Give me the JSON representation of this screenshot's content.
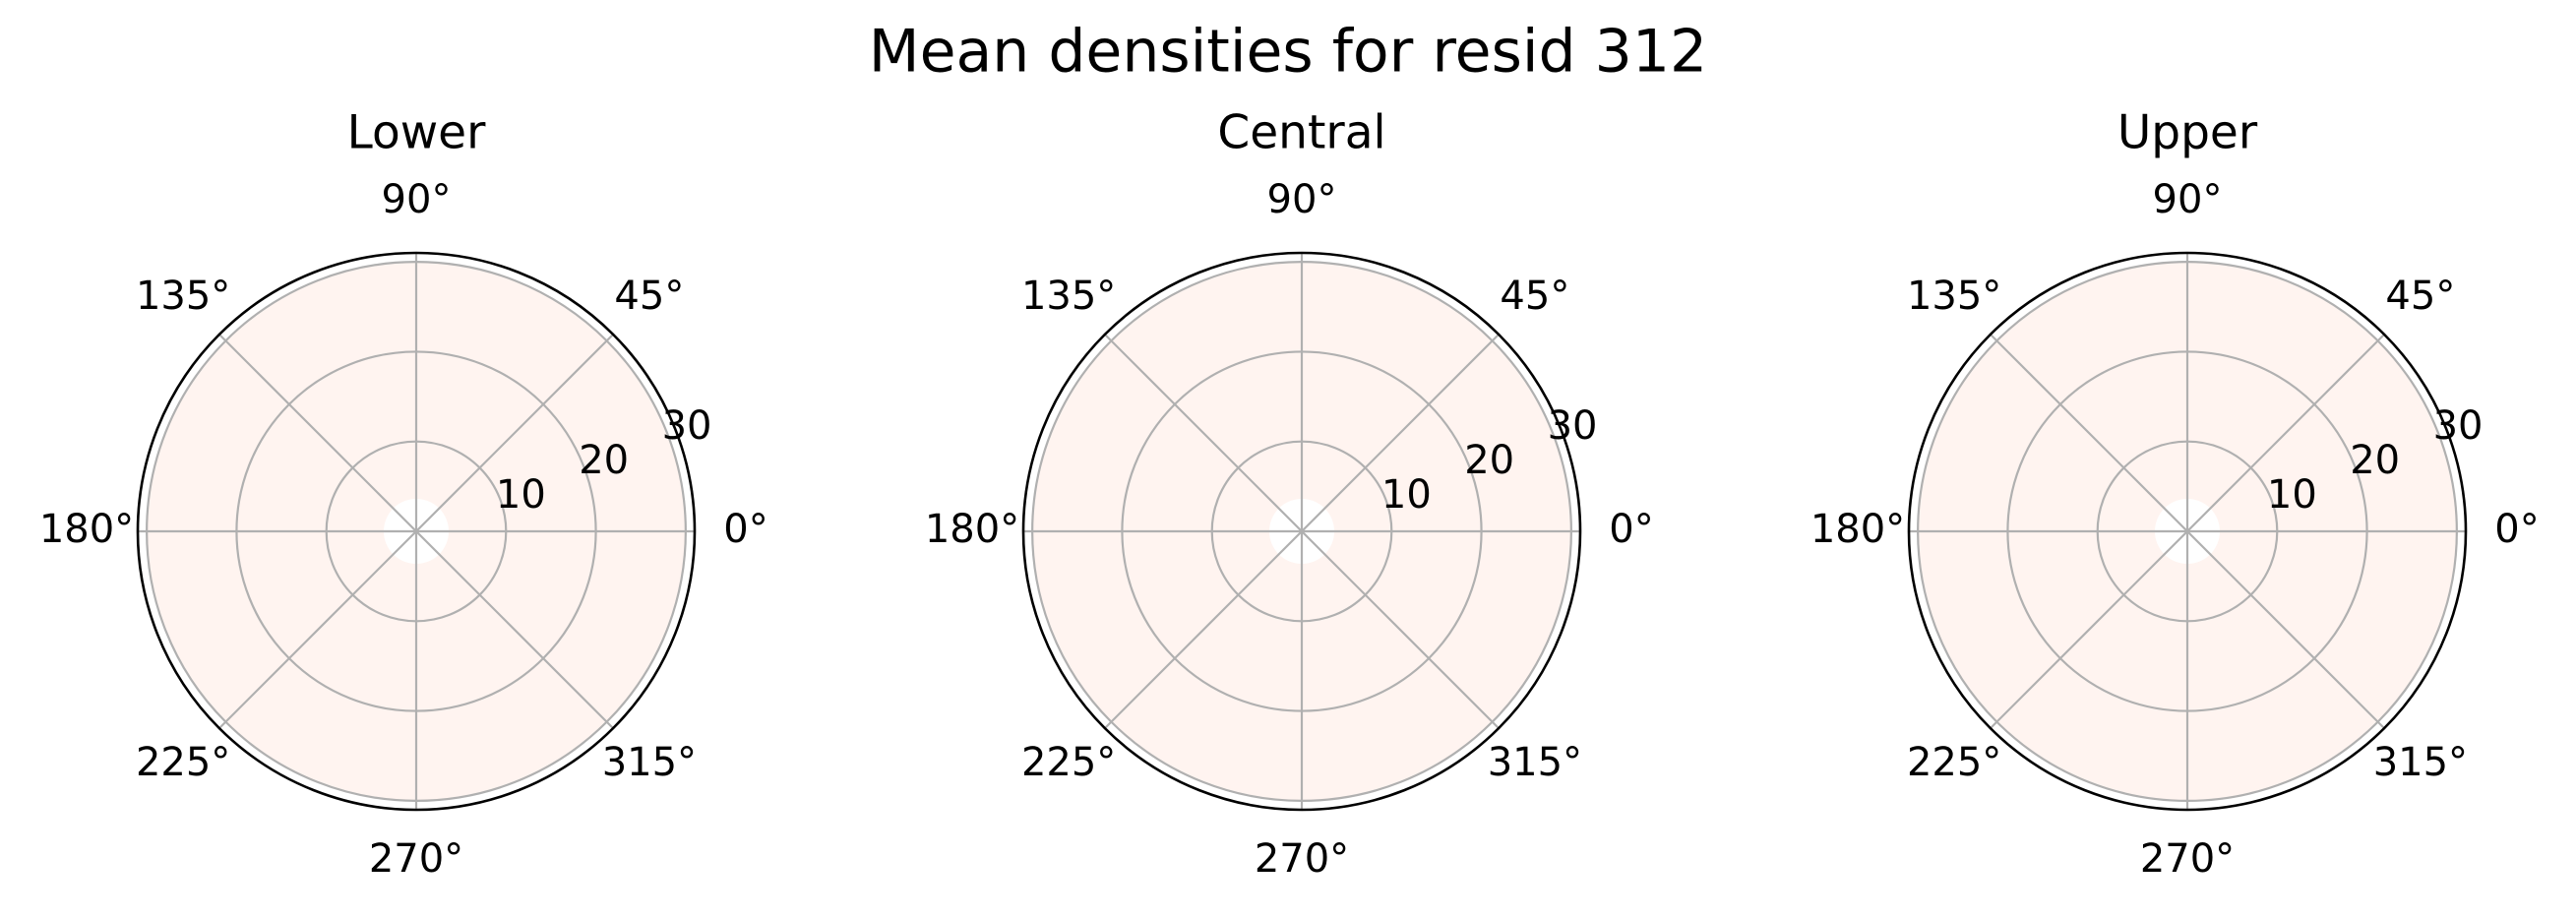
{
  "chart_data": {
    "type": "polar",
    "title": "Mean densities for resid 312",
    "colors": {
      "fill": "#fff4f0",
      "center": "#ffffff",
      "grid": "#b0b0b0",
      "spine": "#000000"
    },
    "angle_ticks": [
      {
        "deg": 0,
        "label": "0°"
      },
      {
        "deg": 45,
        "label": "45°"
      },
      {
        "deg": 90,
        "label": "90°"
      },
      {
        "deg": 135,
        "label": "135°"
      },
      {
        "deg": 180,
        "label": "180°"
      },
      {
        "deg": 225,
        "label": "225°"
      },
      {
        "deg": 270,
        "label": "270°"
      },
      {
        "deg": 315,
        "label": "315°"
      }
    ],
    "radial_ticks": [
      {
        "value": 10,
        "label": "10"
      },
      {
        "value": 20,
        "label": "20"
      },
      {
        "value": 30,
        "label": "30"
      }
    ],
    "rlim": [
      0,
      31
    ],
    "grid": true,
    "panels": [
      {
        "title": "Lower"
      },
      {
        "title": "Central"
      },
      {
        "title": "Upper"
      }
    ]
  }
}
